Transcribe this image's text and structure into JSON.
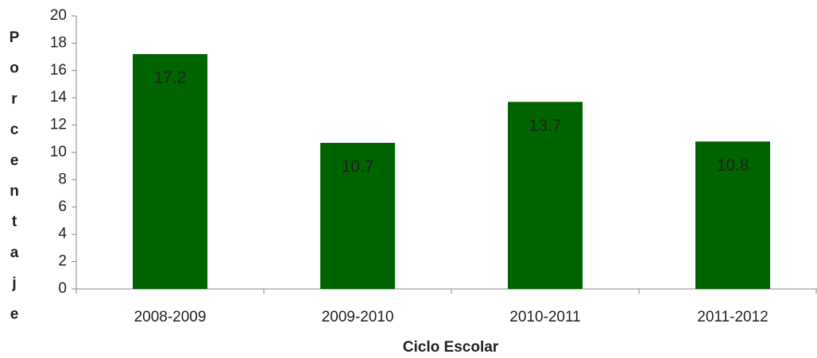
{
  "chart_data": {
    "type": "bar",
    "categories": [
      "2008-2009",
      "2009-2010",
      "2010-2011",
      "2011-2012"
    ],
    "values": [
      17.2,
      10.7,
      13.7,
      10.8
    ],
    "color": "#006400",
    "ylim": [
      0,
      20
    ],
    "yticks": [
      0,
      2,
      4,
      6,
      8,
      10,
      12,
      14,
      16,
      18,
      20
    ],
    "x_label": "Ciclo Escolar",
    "y_label": "Porcentaje",
    "data_labels": true
  }
}
